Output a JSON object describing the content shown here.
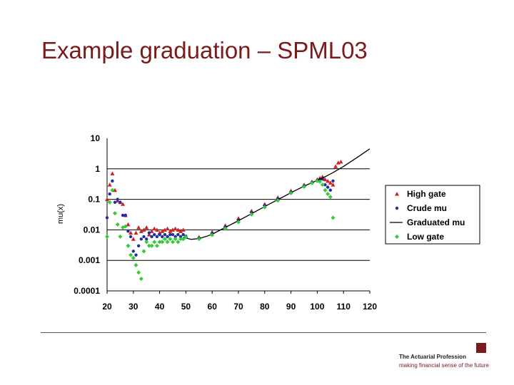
{
  "slide": {
    "title": "Example graduation – SPML03"
  },
  "footer": {
    "org_name": "The Actuarial Profession",
    "tagline": "making financial sense of the future",
    "accent_color": "#7a1a1a"
  },
  "chart_data": {
    "type": "scatter",
    "title": "",
    "xlabel": "",
    "ylabel": "mu(x)",
    "yscale": "log",
    "xlim": [
      20,
      120
    ],
    "ylim": [
      0.0001,
      10
    ],
    "xticks": [
      "20",
      "30",
      "40",
      "50",
      "60",
      "70",
      "80",
      "90",
      "100",
      "110",
      "120"
    ],
    "yticks": [
      "10",
      "1",
      "0.1",
      "0.01",
      "0.001",
      "0.0001"
    ],
    "grid": "horizontal",
    "legend_position": "right",
    "series": [
      {
        "name": "High gate",
        "marker": "triangle",
        "color": "#cc2222",
        "points": [
          [
            20,
            0.1
          ],
          [
            21,
            0.3
          ],
          [
            22,
            0.7
          ],
          [
            23,
            0.2
          ],
          [
            24,
            0.09
          ],
          [
            25,
            0.08
          ],
          [
            26,
            0.07
          ],
          [
            27,
            0.03
          ],
          [
            28,
            0.015
          ],
          [
            29,
            0.008
          ],
          [
            30,
            0.005
          ],
          [
            31,
            0.008
          ],
          [
            32,
            0.012
          ],
          [
            33,
            0.009
          ],
          [
            34,
            0.01
          ],
          [
            35,
            0.012
          ],
          [
            36,
            0.007
          ],
          [
            37,
            0.009
          ],
          [
            38,
            0.011
          ],
          [
            39,
            0.01
          ],
          [
            40,
            0.008
          ],
          [
            41,
            0.009
          ],
          [
            42,
            0.01
          ],
          [
            43,
            0.011
          ],
          [
            44,
            0.009
          ],
          [
            45,
            0.01
          ],
          [
            46,
            0.011
          ],
          [
            47,
            0.01
          ],
          [
            48,
            0.009
          ],
          [
            49,
            0.01
          ],
          [
            50,
            0.006
          ],
          [
            55,
            0.0058
          ],
          [
            60,
            0.0085
          ],
          [
            65,
            0.014
          ],
          [
            70,
            0.024
          ],
          [
            75,
            0.042
          ],
          [
            80,
            0.07
          ],
          [
            85,
            0.115
          ],
          [
            90,
            0.19
          ],
          [
            95,
            0.3
          ],
          [
            98,
            0.38
          ],
          [
            100,
            0.45
          ],
          [
            101,
            0.5
          ],
          [
            102,
            0.55
          ],
          [
            103,
            0.45
          ],
          [
            104,
            0.4
          ],
          [
            105,
            0.35
          ],
          [
            106,
            0.3
          ],
          [
            107,
            1.2
          ],
          [
            108,
            1.6
          ],
          [
            109,
            1.7
          ]
        ]
      },
      {
        "name": "Crude mu",
        "marker": "circle",
        "color": "#1f2fa0",
        "points": [
          [
            20,
            0.025
          ],
          [
            21,
            0.15
          ],
          [
            22,
            0.4
          ],
          [
            23,
            0.08
          ],
          [
            24,
            0.1
          ],
          [
            25,
            0.08
          ],
          [
            26,
            0.03
          ],
          [
            27,
            0.03
          ],
          [
            28,
            0.009
          ],
          [
            29,
            0.006
          ],
          [
            30,
            0.002
          ],
          [
            31,
            0.0015
          ],
          [
            32,
            0.003
          ],
          [
            33,
            0.005
          ],
          [
            34,
            0.006
          ],
          [
            35,
            0.005
          ],
          [
            36,
            0.008
          ],
          [
            37,
            0.006
          ],
          [
            38,
            0.007
          ],
          [
            39,
            0.006
          ],
          [
            40,
            0.007
          ],
          [
            41,
            0.006
          ],
          [
            42,
            0.007
          ],
          [
            43,
            0.006
          ],
          [
            44,
            0.007
          ],
          [
            45,
            0.007
          ],
          [
            46,
            0.006
          ],
          [
            47,
            0.007
          ],
          [
            48,
            0.006
          ],
          [
            49,
            0.007
          ],
          [
            50,
            0.0062
          ],
          [
            55,
            0.0054
          ],
          [
            60,
            0.0077
          ],
          [
            65,
            0.0125
          ],
          [
            70,
            0.021
          ],
          [
            75,
            0.037
          ],
          [
            80,
            0.063
          ],
          [
            85,
            0.105
          ],
          [
            90,
            0.175
          ],
          [
            95,
            0.28
          ],
          [
            98,
            0.36
          ],
          [
            100,
            0.42
          ],
          [
            101,
            0.45
          ],
          [
            102,
            0.46
          ],
          [
            103,
            0.3
          ],
          [
            104,
            0.25
          ],
          [
            105,
            0.2
          ],
          [
            106,
            0.4
          ]
        ]
      },
      {
        "name": "Graduated mu",
        "marker": "line",
        "color": "#000000",
        "points": [
          [
            49,
            0.0058
          ],
          [
            50,
            0.0054
          ],
          [
            52,
            0.0049
          ],
          [
            55,
            0.0052
          ],
          [
            58,
            0.0062
          ],
          [
            60,
            0.0072
          ],
          [
            65,
            0.012
          ],
          [
            70,
            0.02
          ],
          [
            75,
            0.034
          ],
          [
            80,
            0.058
          ],
          [
            85,
            0.098
          ],
          [
            90,
            0.165
          ],
          [
            95,
            0.27
          ],
          [
            100,
            0.42
          ],
          [
            103,
            0.55
          ],
          [
            106,
            0.75
          ],
          [
            110,
            1.2
          ],
          [
            115,
            2.3
          ],
          [
            120,
            4.5
          ]
        ]
      },
      {
        "name": "Low gate",
        "marker": "diamond",
        "color": "#33cc33",
        "points": [
          [
            20,
            0.006
          ],
          [
            21,
            0.08
          ],
          [
            22,
            0.2
          ],
          [
            23,
            0.035
          ],
          [
            24,
            0.015
          ],
          [
            25,
            0.006
          ],
          [
            26,
            0.012
          ],
          [
            27,
            0.013
          ],
          [
            28,
            0.003
          ],
          [
            29,
            0.0015
          ],
          [
            30,
            0.0012
          ],
          [
            31,
            0.0007
          ],
          [
            32,
            0.0004
          ],
          [
            33,
            0.00025
          ],
          [
            34,
            0.002
          ],
          [
            35,
            0.004
          ],
          [
            36,
            0.003
          ],
          [
            37,
            0.003
          ],
          [
            38,
            0.004
          ],
          [
            39,
            0.003
          ],
          [
            40,
            0.004
          ],
          [
            41,
            0.004
          ],
          [
            42,
            0.005
          ],
          [
            43,
            0.004
          ],
          [
            44,
            0.005
          ],
          [
            45,
            0.004
          ],
          [
            46,
            0.005
          ],
          [
            47,
            0.004
          ],
          [
            48,
            0.005
          ],
          [
            49,
            0.005
          ],
          [
            50,
            0.0058
          ],
          [
            55,
            0.005
          ],
          [
            60,
            0.0068
          ],
          [
            65,
            0.011
          ],
          [
            70,
            0.018
          ],
          [
            75,
            0.032
          ],
          [
            80,
            0.055
          ],
          [
            85,
            0.092
          ],
          [
            90,
            0.16
          ],
          [
            95,
            0.26
          ],
          [
            98,
            0.34
          ],
          [
            100,
            0.4
          ],
          [
            101,
            0.38
          ],
          [
            102,
            0.3
          ],
          [
            103,
            0.2
          ],
          [
            104,
            0.15
          ],
          [
            105,
            0.12
          ],
          [
            106,
            0.025
          ]
        ]
      }
    ]
  }
}
